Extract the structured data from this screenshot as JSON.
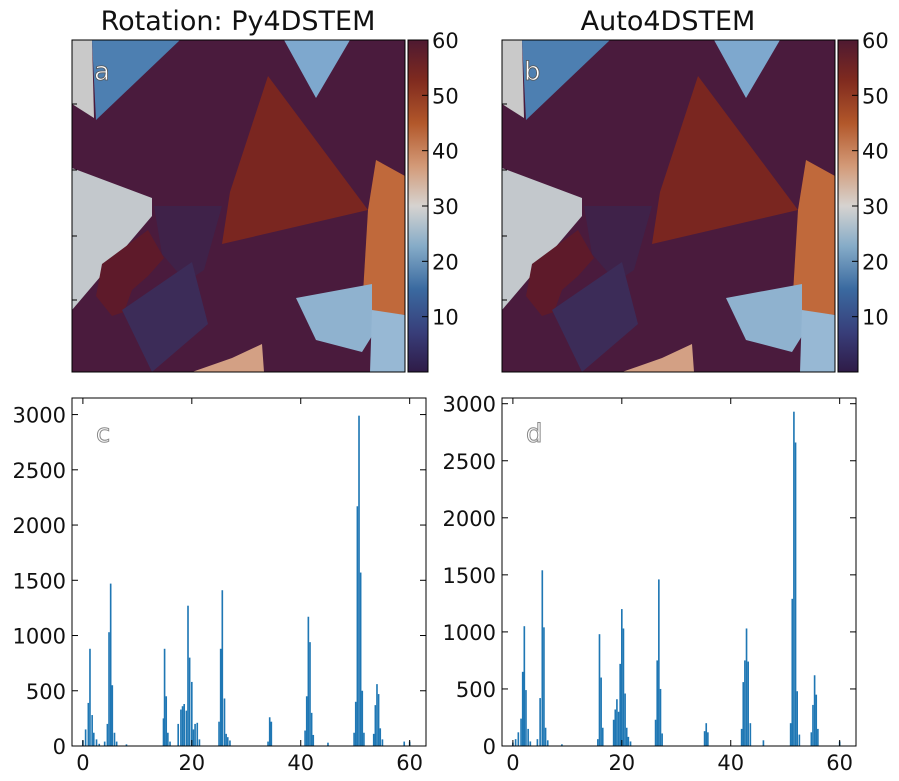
{
  "colorbar": {
    "ticks": [
      10,
      20,
      30,
      40,
      50,
      60
    ],
    "range": [
      0,
      60
    ]
  },
  "panels": {
    "a": {
      "title": "Rotation: Py4DSTEM",
      "label": "a"
    },
    "b": {
      "title": "Auto4DSTEM",
      "label": "b"
    },
    "c": {
      "label": "c"
    },
    "d": {
      "label": "d"
    }
  },
  "chart_data": [
    {
      "type": "heatmap",
      "title": "Rotation: Py4DSTEM",
      "colorbar_ticks": [
        10,
        20,
        30,
        40,
        50,
        60
      ],
      "zlim": [
        0,
        60
      ]
    },
    {
      "type": "heatmap",
      "title": "Auto4DSTEM",
      "colorbar_ticks": [
        10,
        20,
        30,
        40,
        50,
        60
      ],
      "zlim": [
        0,
        60
      ]
    },
    {
      "type": "bar",
      "xlim": [
        -2,
        63
      ],
      "ylim": [
        0,
        3150
      ],
      "xticks": [
        0,
        20,
        40,
        60
      ],
      "yticks": [
        0,
        500,
        1000,
        1500,
        2000,
        2500,
        3000
      ],
      "x": [
        0,
        0.5,
        1,
        1.3,
        1.7,
        2,
        2.5,
        3,
        4,
        4.5,
        4.8,
        5.1,
        5.4,
        5.8,
        6.2,
        8,
        14.8,
        15,
        15.3,
        15.6,
        16,
        17.5,
        18,
        18.3,
        18.6,
        19,
        19.3,
        19.6,
        20,
        20.3,
        20.6,
        21,
        21.4,
        25,
        25.3,
        25.6,
        26,
        26.3,
        26.6,
        27,
        34,
        34.3,
        34.6,
        40.8,
        41.1,
        41.4,
        41.7,
        42,
        42.3,
        45,
        49.8,
        50.1,
        50.4,
        50.7,
        51,
        51.3,
        51.6,
        53.4,
        53.7,
        54,
        54.3,
        54.6,
        55,
        59,
        60
      ],
      "values": [
        50,
        150,
        390,
        880,
        280,
        120,
        60,
        20,
        40,
        200,
        1030,
        1470,
        550,
        120,
        40,
        15,
        250,
        880,
        450,
        120,
        40,
        200,
        330,
        360,
        380,
        320,
        1270,
        800,
        580,
        150,
        200,
        210,
        60,
        220,
        880,
        1410,
        430,
        110,
        80,
        50,
        40,
        260,
        220,
        140,
        450,
        1170,
        940,
        300,
        100,
        30,
        120,
        400,
        2170,
        2990,
        1570,
        500,
        120,
        110,
        370,
        560,
        470,
        160,
        60,
        40,
        40
      ]
    },
    {
      "type": "bar",
      "xlim": [
        -2,
        63
      ],
      "ylim": [
        0,
        3050
      ],
      "xticks": [
        0,
        20,
        40,
        60
      ],
      "yticks": [
        0,
        500,
        1000,
        1500,
        2000,
        2500,
        3000
      ],
      "x": [
        0,
        0.5,
        1,
        1.5,
        1.8,
        2.1,
        2.4,
        2.8,
        3.2,
        4.5,
        5,
        5.4,
        5.7,
        6,
        6.4,
        9,
        15.6,
        15.9,
        16.2,
        16.5,
        18.5,
        18.8,
        19.1,
        19.4,
        19.7,
        20,
        20.3,
        20.6,
        20.9,
        21.2,
        21.6,
        26.2,
        26.5,
        26.8,
        27.1,
        27.4,
        35.2,
        35.5,
        35.8,
        42,
        42.3,
        42.6,
        42.9,
        43.2,
        43.6,
        46,
        51,
        51.3,
        51.6,
        51.9,
        52.2,
        52.6,
        54.8,
        55.1,
        55.4,
        55.7,
        56,
        60
      ],
      "values": [
        30,
        60,
        120,
        240,
        650,
        1050,
        490,
        150,
        40,
        60,
        420,
        1540,
        1040,
        160,
        50,
        15,
        60,
        980,
        600,
        160,
        230,
        320,
        410,
        300,
        720,
        1200,
        1030,
        460,
        160,
        80,
        40,
        230,
        750,
        1460,
        500,
        110,
        130,
        200,
        120,
        150,
        560,
        750,
        1030,
        740,
        200,
        50,
        200,
        1290,
        2930,
        2660,
        480,
        100,
        120,
        360,
        620,
        450,
        150,
        40
      ]
    }
  ]
}
